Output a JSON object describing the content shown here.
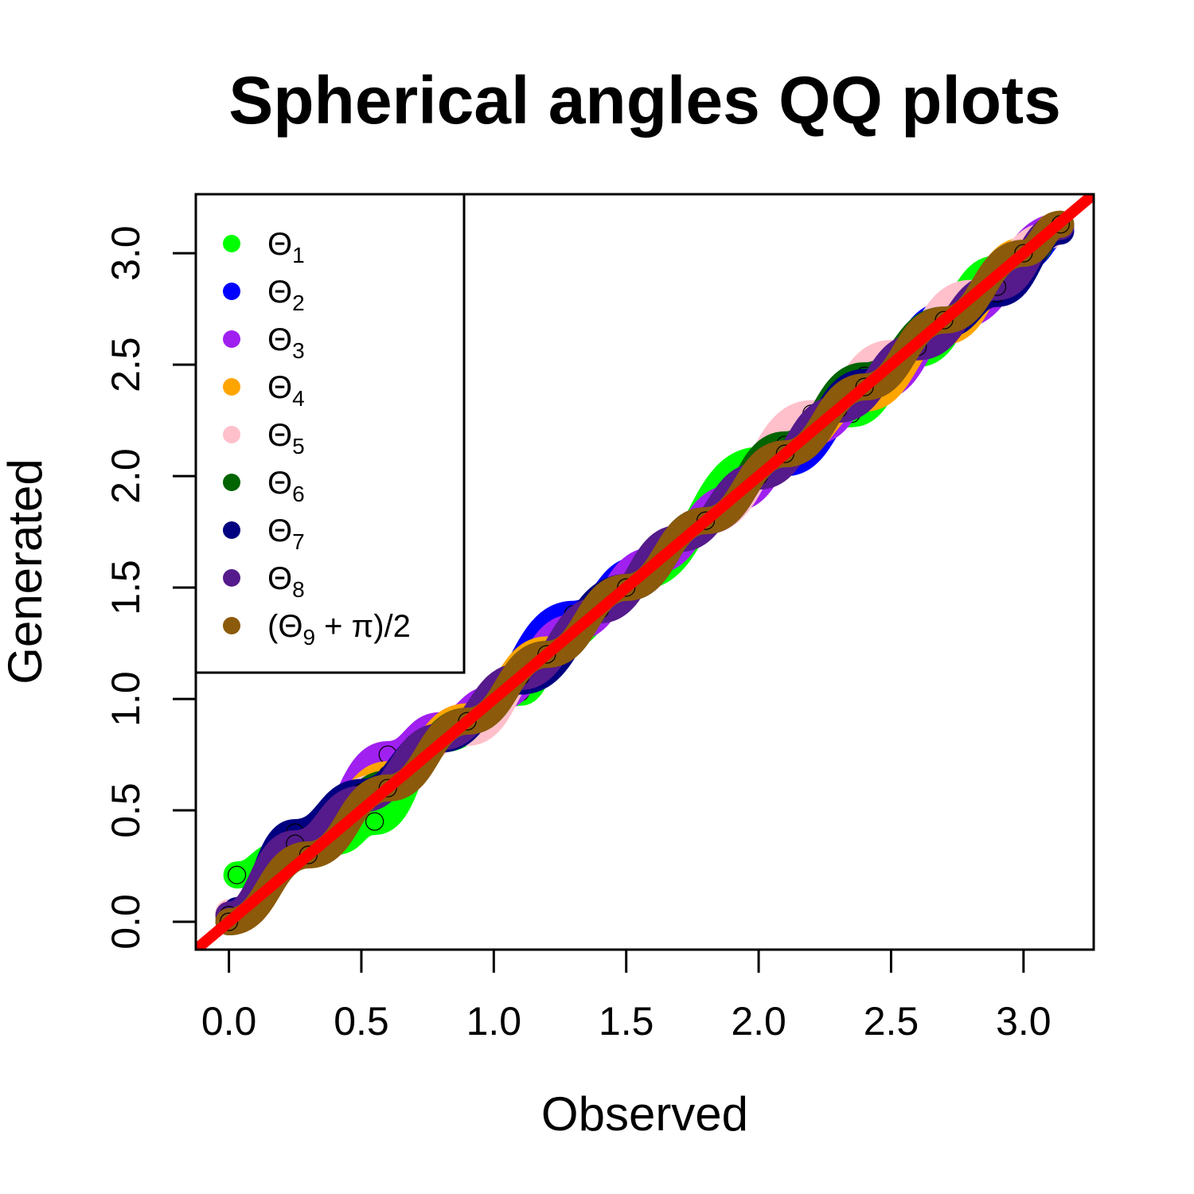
{
  "chart_data": {
    "type": "scatter",
    "title": "Spherical angles QQ plots",
    "xlabel": "Observed",
    "ylabel": "Generated",
    "xlim": [
      -0.125,
      3.265
    ],
    "ylim": [
      -0.125,
      3.265
    ],
    "xticks": [
      0.0,
      0.5,
      1.0,
      1.5,
      2.0,
      2.5,
      3.0
    ],
    "yticks": [
      0.0,
      0.5,
      1.0,
      1.5,
      2.0,
      2.5,
      3.0
    ],
    "xtick_labels": [
      "0.0",
      "0.5",
      "1.0",
      "1.5",
      "2.0",
      "2.5",
      "3.0"
    ],
    "ytick_labels": [
      "0.0",
      "0.5",
      "1.0",
      "1.5",
      "2.0",
      "2.5",
      "3.0"
    ],
    "grid": false,
    "legend_position": "top-left",
    "reference_line": {
      "slope": 1,
      "intercept": 0,
      "color": "#ff0000"
    },
    "series": [
      {
        "name": "Θ",
        "sub": "1",
        "color": "#00ff00",
        "x": [
          0.03,
          0.2,
          0.4,
          0.55,
          0.8,
          1.1,
          1.25,
          1.55,
          2.0,
          2.35,
          2.6,
          2.9,
          3.14
        ],
        "y": [
          0.21,
          0.3,
          0.36,
          0.45,
          0.82,
          1.03,
          1.27,
          1.55,
          2.07,
          2.28,
          2.55,
          2.93,
          3.12
        ]
      },
      {
        "name": "Θ",
        "sub": "2",
        "color": "#0000ff",
        "x": [
          0.0,
          0.3,
          0.6,
          0.9,
          1.3,
          1.55,
          1.8,
          2.1,
          2.4,
          2.7,
          3.0,
          3.14
        ],
        "y": [
          0.02,
          0.37,
          0.65,
          0.92,
          1.38,
          1.58,
          1.8,
          2.06,
          2.35,
          2.72,
          2.98,
          3.1
        ]
      },
      {
        "name": "Θ",
        "sub": "3",
        "color": "#a020f0",
        "x": [
          0.0,
          0.3,
          0.6,
          0.8,
          1.0,
          1.3,
          1.6,
          1.9,
          2.2,
          2.45,
          2.75,
          3.14
        ],
        "y": [
          0.03,
          0.36,
          0.75,
          0.88,
          1.0,
          1.32,
          1.62,
          1.9,
          2.2,
          2.4,
          2.72,
          3.12
        ]
      },
      {
        "name": "Θ",
        "sub": "4",
        "color": "#ffa500",
        "x": [
          0.0,
          0.3,
          0.6,
          0.9,
          1.2,
          1.5,
          1.8,
          2.1,
          2.4,
          2.7,
          3.0,
          3.14
        ],
        "y": [
          0.02,
          0.33,
          0.66,
          0.92,
          1.22,
          1.5,
          1.8,
          2.12,
          2.35,
          2.65,
          3.01,
          3.13
        ]
      },
      {
        "name": "Θ",
        "sub": "5",
        "color": "#ffc0cb",
        "x": [
          0.0,
          0.3,
          0.55,
          0.9,
          1.2,
          1.5,
          1.8,
          2.2,
          2.5,
          2.8,
          3.1
        ],
        "y": [
          0.04,
          0.4,
          0.6,
          0.85,
          1.2,
          1.5,
          1.8,
          2.28,
          2.55,
          2.82,
          3.08
        ]
      },
      {
        "name": "Θ",
        "sub": "6",
        "color": "#006400",
        "x": [
          0.0,
          0.3,
          0.6,
          0.9,
          1.2,
          1.5,
          1.8,
          2.1,
          2.4,
          2.7,
          3.0,
          3.14
        ],
        "y": [
          0.0,
          0.33,
          0.62,
          0.9,
          1.2,
          1.5,
          1.8,
          2.14,
          2.45,
          2.7,
          2.98,
          3.13
        ]
      },
      {
        "name": "Θ",
        "sub": "7",
        "color": "#000080",
        "x": [
          0.03,
          0.25,
          0.5,
          0.8,
          1.1,
          1.5,
          1.8,
          2.1,
          2.4,
          2.7,
          2.9,
          3.14
        ],
        "y": [
          0.05,
          0.4,
          0.58,
          0.82,
          1.08,
          1.5,
          1.8,
          2.1,
          2.42,
          2.68,
          2.82,
          3.1
        ]
      },
      {
        "name": "Θ",
        "sub": "8",
        "color": "#551a8b",
        "x": [
          0.0,
          0.25,
          0.5,
          0.8,
          1.1,
          1.4,
          1.7,
          2.0,
          2.3,
          2.6,
          2.9,
          3.14
        ],
        "y": [
          0.03,
          0.35,
          0.55,
          0.83,
          1.1,
          1.4,
          1.72,
          2.0,
          2.3,
          2.58,
          2.85,
          3.12
        ]
      },
      {
        "name": "(Θ",
        "sub": "9",
        "after": " + π)/2",
        "color": "#8b5a0b",
        "x": [
          0.0,
          0.3,
          0.6,
          0.9,
          1.2,
          1.5,
          1.8,
          2.1,
          2.4,
          2.7,
          3.0,
          3.14
        ],
        "y": [
          0.0,
          0.3,
          0.6,
          0.9,
          1.2,
          1.5,
          1.8,
          2.1,
          2.4,
          2.7,
          3.0,
          3.13
        ]
      }
    ]
  }
}
